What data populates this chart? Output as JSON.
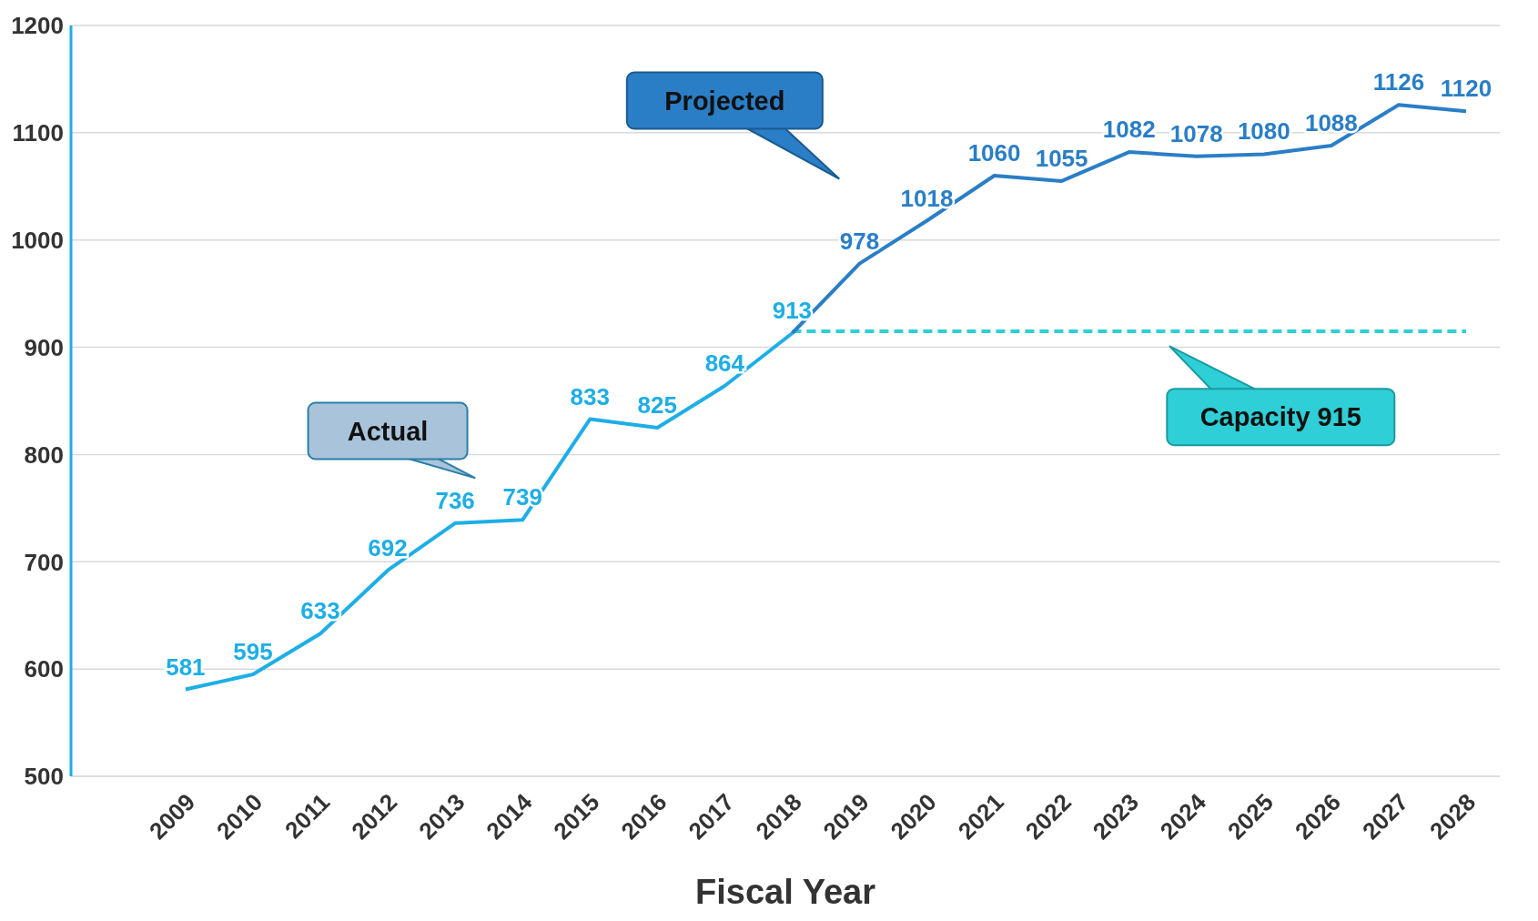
{
  "chart_data": {
    "type": "line",
    "xlabel": "Fiscal Year",
    "categories": [
      "2009",
      "2010",
      "2011",
      "2012",
      "2013",
      "2014",
      "2015",
      "2016",
      "2017",
      "2018",
      "2019",
      "2020",
      "2021",
      "2022",
      "2023",
      "2024",
      "2025",
      "2026",
      "2027",
      "2028"
    ],
    "series": [
      {
        "name": "Actual",
        "color": "#1eaee6",
        "values": [
          581,
          595,
          633,
          692,
          736,
          739,
          833,
          825,
          864,
          913,
          null,
          null,
          null,
          null,
          null,
          null,
          null,
          null,
          null,
          null
        ],
        "value_labels": [
          "581",
          "595",
          "633",
          "692",
          "736",
          "739",
          "833",
          "825",
          "864",
          "913",
          null,
          null,
          null,
          null,
          null,
          null,
          null,
          null,
          null,
          null
        ]
      },
      {
        "name": "Projected",
        "color": "#2a7ec6",
        "values": [
          null,
          null,
          null,
          null,
          null,
          null,
          null,
          null,
          null,
          913,
          978,
          1018,
          1060,
          1055,
          1082,
          1078,
          1080,
          1088,
          1126,
          1120
        ],
        "value_labels": [
          null,
          null,
          null,
          null,
          null,
          null,
          null,
          null,
          null,
          null,
          "978",
          "1018",
          "1060",
          "1055",
          "1082",
          "1078",
          "1080",
          "1088",
          "1126",
          "1120"
        ]
      }
    ],
    "ylim": [
      500,
      1200
    ],
    "yticks": [
      500,
      600,
      700,
      800,
      900,
      1000,
      1100,
      1200
    ],
    "grid": "y",
    "marker": "none",
    "line_style": "solid",
    "ref_lines": [
      {
        "axis": "y",
        "value": 915,
        "label": "Capacity 915",
        "color": "#2ecfd6",
        "line_style": "dashed"
      }
    ]
  }
}
